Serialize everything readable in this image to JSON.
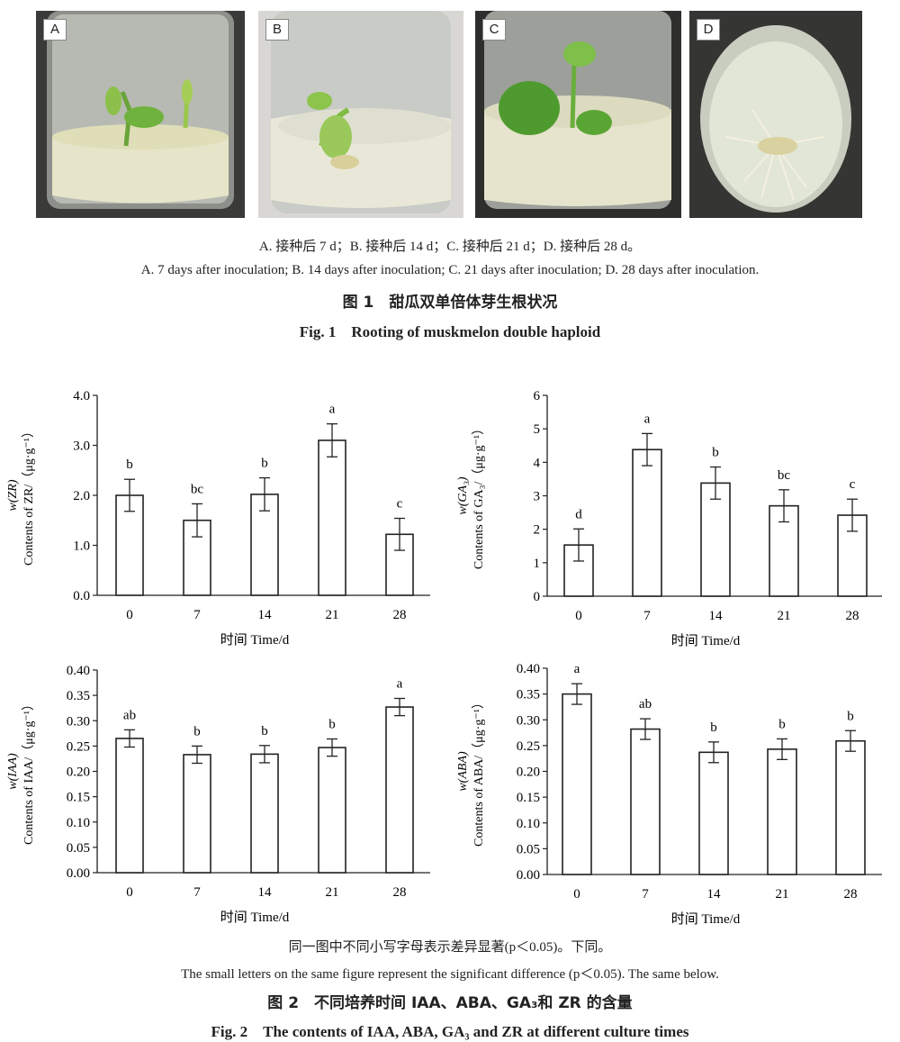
{
  "figure1": {
    "panels": [
      {
        "label": "A"
      },
      {
        "label": "B"
      },
      {
        "label": "C"
      },
      {
        "label": "D"
      }
    ],
    "caption_cn": "A. 接种后 7 d；B. 接种后 14 d；C. 接种后 21 d；D. 接种后 28 d。",
    "caption_en": "A. 7 days after inoculation; B. 14 days after inoculation; C. 21 days after inoculation; D. 28 days after inoculation.",
    "title_cn": "图 1　甜瓜双单倍体芽生根状况",
    "title_en": "Fig. 1　Rooting of muskmelon double haploid"
  },
  "figure2": {
    "note_cn": "同一图中不同小写字母表示差异显著(p＜0.05)。下同。",
    "note_en": "The small letters on the same figure represent the significant difference (p＜0.05). The same below.",
    "title_cn": "图 2　不同培养时间 IAA、ABA、GA₃和 ZR 的含量",
    "title_en": "Fig. 2　The contents of IAA, ABA, GA₃ and ZR at different culture times"
  },
  "chart_data": [
    {
      "type": "bar",
      "categories": [
        "0",
        "7",
        "14",
        "21",
        "28"
      ],
      "values": [
        2.0,
        1.5,
        2.02,
        3.1,
        1.22
      ],
      "errors": [
        0.32,
        0.33,
        0.33,
        0.33,
        0.32
      ],
      "letters": [
        "b",
        "bc",
        "b",
        "a",
        "c"
      ],
      "ylabel1": "w(ZR)",
      "ylabel2": "Contents of ZR/（μg·g⁻¹）",
      "xlabel": "时间 Time/d",
      "ylim": [
        0,
        4.0
      ],
      "yticks": [
        "0.0",
        "1.0",
        "2.0",
        "3.0",
        "4.0"
      ]
    },
    {
      "type": "bar",
      "categories": [
        "0",
        "7",
        "14",
        "21",
        "28"
      ],
      "values": [
        1.53,
        4.38,
        3.38,
        2.7,
        2.42
      ],
      "errors": [
        0.48,
        0.48,
        0.48,
        0.48,
        0.48
      ],
      "letters": [
        "d",
        "a",
        "b",
        "bc",
        "c"
      ],
      "ylabel1": "w(GA₃)",
      "ylabel2": "Contents of GA₃/（μg·g⁻¹）",
      "xlabel": "时间 Time/d",
      "ylim": [
        0,
        6
      ],
      "yticks": [
        "0",
        "1",
        "2",
        "3",
        "4",
        "5",
        "6"
      ]
    },
    {
      "type": "bar",
      "categories": [
        "0",
        "7",
        "14",
        "21",
        "28"
      ],
      "values": [
        0.265,
        0.233,
        0.234,
        0.247,
        0.327
      ],
      "errors": [
        0.017,
        0.017,
        0.017,
        0.017,
        0.017
      ],
      "letters": [
        "ab",
        "b",
        "b",
        "b",
        "a"
      ],
      "ylabel1": "w(IAA)",
      "ylabel2": "Contents of IAA/（μg·g⁻¹）",
      "xlabel": "时间 Time/d",
      "ylim": [
        0,
        0.4
      ],
      "yticks": [
        "0.00",
        "0.05",
        "0.10",
        "0.15",
        "0.20",
        "0.25",
        "0.30",
        "0.35",
        "0.40"
      ]
    },
    {
      "type": "bar",
      "categories": [
        "0",
        "7",
        "14",
        "21",
        "28"
      ],
      "values": [
        0.35,
        0.282,
        0.237,
        0.243,
        0.259
      ],
      "errors": [
        0.02,
        0.02,
        0.02,
        0.02,
        0.02
      ],
      "letters": [
        "a",
        "ab",
        "b",
        "b",
        "b"
      ],
      "ylabel1": "w(ABA)",
      "ylabel2": "Contents of ABA/（μg·g⁻¹）",
      "xlabel": "时间 Time/d",
      "ylim": [
        0,
        0.4
      ],
      "yticks": [
        "0.00",
        "0.05",
        "0.10",
        "0.15",
        "0.20",
        "0.25",
        "0.30",
        "0.35",
        "0.40"
      ]
    }
  ]
}
